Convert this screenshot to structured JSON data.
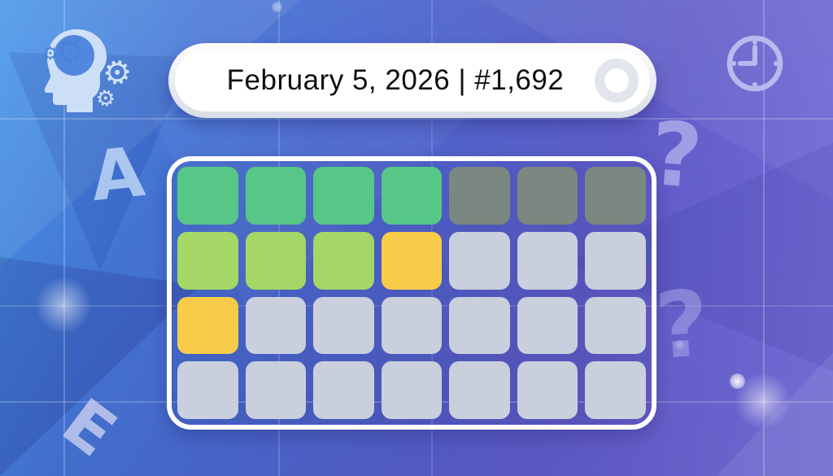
{
  "title_pill": {
    "text": "February 5, 2026 | #1,692"
  },
  "decor": {
    "letter_a": "A",
    "letter_e": "E",
    "question_mark_1": "?",
    "question_mark_2": "?"
  },
  "icons": {
    "gear_glyph": "⚙",
    "brain_icon": "brain-with-gears",
    "clock_icon": "clock-9-oclock"
  },
  "colors": {
    "bg_blue": "#4796e8",
    "bg_purple": "#7a74dc",
    "panel_border": "#ffffff",
    "pill_face": "#ffffff",
    "pill_rim": "#d9dde5",
    "text": "#101010"
  },
  "board": {
    "rows": 4,
    "cols": 7,
    "tile_colors": {
      "green": "#57c787",
      "light_green": "#a4d765",
      "yellow": "#f8cc49",
      "gray": "#7b8882",
      "empty": "#c9cfdd"
    },
    "cells": [
      [
        "green",
        "green",
        "green",
        "green",
        "gray",
        "gray",
        "gray"
      ],
      [
        "light_green",
        "light_green",
        "light_green",
        "yellow",
        "empty",
        "empty",
        "empty"
      ],
      [
        "yellow",
        "empty",
        "empty",
        "empty",
        "empty",
        "empty",
        "empty"
      ],
      [
        "empty",
        "empty",
        "empty",
        "empty",
        "empty",
        "empty",
        "empty"
      ]
    ]
  }
}
